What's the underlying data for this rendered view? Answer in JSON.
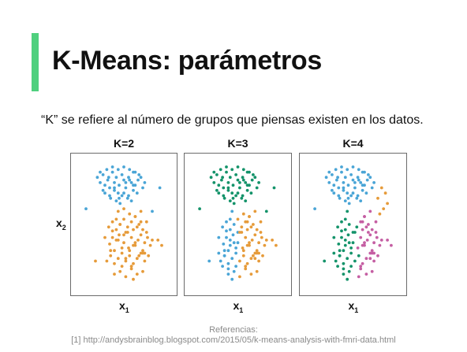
{
  "slide": {
    "title": "K-Means: parámetros",
    "subtitle": "“K” se refiere al número de grupos que piensas existen en los datos.",
    "footer_heading": "Referencias:",
    "footer_reference": "[1] http://andysbrainblog.blogspot.com/2015/05/k-means-analysis-with-fmri-data.html",
    "accent_color": "#4fd07e"
  },
  "chart_data": [
    {
      "type": "scatter",
      "title": "K=2",
      "xlabel": "x",
      "xlabel_sub": "1",
      "ylabel": "x",
      "ylabel_sub": "2",
      "xlim": [
        0,
        100
      ],
      "ylim": [
        0,
        100
      ],
      "grid": false,
      "colors": {
        "a": "#4aa5d6",
        "b": "#e69b3a"
      },
      "series": [
        {
          "cluster": "a",
          "x": [
            22,
            25,
            28,
            30,
            33,
            35,
            38,
            40,
            42,
            45,
            48,
            50,
            52,
            55,
            58,
            60,
            62,
            65,
            68,
            70,
            30,
            35,
            40,
            45,
            50,
            55,
            60,
            32,
            38,
            44,
            50,
            56,
            62,
            28,
            36,
            42,
            48,
            54,
            46,
            58,
            64,
            72,
            25,
            40,
            52,
            66,
            34,
            60,
            44,
            56
          ],
          "y": [
            86,
            82,
            88,
            80,
            84,
            78,
            90,
            82,
            86,
            80,
            88,
            84,
            78,
            86,
            82,
            90,
            80,
            84,
            86,
            78,
            74,
            72,
            76,
            70,
            74,
            72,
            76,
            92,
            94,
            92,
            94,
            92,
            90,
            76,
            70,
            68,
            72,
            70,
            66,
            68,
            74,
            82,
            90,
            78,
            82,
            88,
            86,
            80,
            74,
            84
          ]
        },
        {
          "cluster": "b",
          "x": [
            30,
            35,
            38,
            40,
            42,
            45,
            48,
            50,
            52,
            55,
            58,
            60,
            62,
            65,
            68,
            70,
            72,
            75,
            78,
            80,
            32,
            36,
            40,
            44,
            48,
            52,
            56,
            60,
            64,
            68,
            72,
            76,
            34,
            38,
            42,
            46,
            50,
            54,
            58,
            62,
            66,
            70,
            74,
            40,
            46,
            52,
            58,
            64,
            70,
            44,
            50,
            56,
            62,
            68,
            36,
            48,
            60,
            72,
            54,
            66,
            42,
            58,
            74,
            50,
            62,
            46,
            70,
            56,
            64,
            38,
            52,
            68,
            60,
            44
          ],
          "y": [
            40,
            35,
            45,
            30,
            38,
            42,
            28,
            36,
            44,
            32,
            40,
            46,
            34,
            38,
            42,
            30,
            36,
            40,
            34,
            38,
            22,
            26,
            20,
            24,
            18,
            22,
            26,
            20,
            24,
            28,
            22,
            26,
            48,
            52,
            46,
            50,
            54,
            48,
            52,
            56,
            50,
            46,
            52,
            12,
            14,
            10,
            16,
            12,
            14,
            60,
            62,
            58,
            56,
            60,
            30,
            32,
            34,
            28,
            44,
            26,
            54,
            18,
            44,
            42,
            36,
            50,
            28,
            30,
            48,
            40,
            24,
            52,
            8,
            38
          ]
        },
        {
          "cluster": "a",
          "x": [
            10,
            80,
            88
          ],
          "y": [
            62,
            60,
            78
          ]
        },
        {
          "cluster": "b",
          "x": [
            20,
            86,
            90
          ],
          "y": [
            22,
            38,
            34
          ]
        }
      ]
    },
    {
      "type": "scatter",
      "title": "K=3",
      "xlabel": "x",
      "xlabel_sub": "1",
      "ylabel": "",
      "xlim": [
        0,
        100
      ],
      "ylim": [
        0,
        100
      ],
      "grid": false,
      "colors": {
        "a": "#14936a",
        "b": "#4aa5d6",
        "c": "#e69b3a"
      },
      "series": [
        {
          "cluster": "a",
          "x": [
            22,
            25,
            28,
            30,
            33,
            35,
            38,
            40,
            42,
            45,
            48,
            50,
            52,
            55,
            58,
            60,
            62,
            65,
            68,
            70,
            30,
            35,
            40,
            45,
            50,
            55,
            60,
            32,
            38,
            44,
            50,
            56,
            62,
            28,
            36,
            42,
            48,
            54,
            46,
            58,
            64,
            72,
            25,
            40,
            52,
            66,
            34,
            60,
            44,
            56,
            10,
            80,
            88
          ],
          "y": [
            86,
            82,
            88,
            80,
            84,
            78,
            90,
            82,
            86,
            80,
            88,
            84,
            78,
            86,
            82,
            90,
            80,
            84,
            86,
            78,
            74,
            72,
            76,
            70,
            74,
            72,
            76,
            92,
            94,
            92,
            94,
            92,
            90,
            76,
            70,
            68,
            72,
            70,
            66,
            68,
            74,
            82,
            90,
            78,
            82,
            88,
            86,
            80,
            74,
            84,
            62,
            60,
            78
          ]
        },
        {
          "cluster": "b",
          "x": [
            30,
            35,
            38,
            40,
            42,
            45,
            48,
            50,
            32,
            36,
            40,
            44,
            48,
            34,
            38,
            42,
            46,
            40,
            46,
            44,
            36,
            48,
            42,
            38,
            44,
            20,
            46,
            50,
            34,
            30,
            40,
            36,
            42
          ],
          "y": [
            40,
            35,
            45,
            30,
            38,
            42,
            28,
            36,
            22,
            26,
            20,
            24,
            18,
            48,
            52,
            46,
            50,
            12,
            14,
            60,
            30,
            32,
            54,
            40,
            8,
            22,
            36,
            44,
            18,
            28,
            16,
            26,
            34
          ]
        },
        {
          "cluster": "c",
          "x": [
            52,
            55,
            58,
            60,
            62,
            65,
            68,
            70,
            72,
            75,
            78,
            80,
            52,
            56,
            60,
            64,
            68,
            72,
            76,
            50,
            54,
            58,
            62,
            66,
            70,
            74,
            52,
            58,
            64,
            70,
            56,
            62,
            68,
            60,
            72,
            54,
            66,
            58,
            74,
            62,
            70,
            56,
            64,
            86,
            90,
            68,
            60
          ],
          "y": [
            44,
            32,
            40,
            46,
            34,
            38,
            42,
            30,
            36,
            40,
            34,
            38,
            22,
            26,
            20,
            24,
            28,
            22,
            26,
            54,
            48,
            52,
            56,
            50,
            46,
            52,
            10,
            16,
            12,
            14,
            58,
            56,
            60,
            34,
            28,
            44,
            26,
            18,
            44,
            36,
            28,
            30,
            48,
            38,
            34,
            24,
            52
          ]
        }
      ]
    },
    {
      "type": "scatter",
      "title": "K=4",
      "xlabel": "x",
      "xlabel_sub": "1",
      "ylabel": "",
      "xlim": [
        0,
        100
      ],
      "ylim": [
        0,
        100
      ],
      "grid": false,
      "colors": {
        "a": "#4aa5d6",
        "b": "#e69b3a",
        "c": "#14936a",
        "d": "#c55fa3"
      },
      "series": [
        {
          "cluster": "a",
          "x": [
            22,
            25,
            28,
            30,
            33,
            35,
            38,
            40,
            42,
            45,
            48,
            50,
            52,
            55,
            58,
            60,
            62,
            65,
            68,
            70,
            30,
            35,
            40,
            45,
            50,
            55,
            60,
            32,
            38,
            44,
            50,
            56,
            62,
            28,
            36,
            42,
            48,
            54,
            46,
            58,
            64,
            72,
            25,
            40,
            52,
            66,
            34,
            60,
            44,
            56,
            10
          ],
          "y": [
            86,
            82,
            88,
            80,
            84,
            78,
            90,
            82,
            86,
            80,
            88,
            84,
            78,
            86,
            82,
            90,
            80,
            84,
            86,
            78,
            74,
            72,
            76,
            70,
            74,
            72,
            76,
            92,
            94,
            92,
            94,
            92,
            90,
            76,
            70,
            68,
            72,
            70,
            66,
            68,
            74,
            82,
            90,
            78,
            82,
            88,
            86,
            80,
            74,
            84,
            62
          ]
        },
        {
          "cluster": "b",
          "x": [
            80,
            76,
            84,
            82,
            78,
            86
          ],
          "y": [
            78,
            70,
            74,
            62,
            58,
            66
          ]
        },
        {
          "cluster": "c",
          "x": [
            30,
            35,
            38,
            40,
            42,
            45,
            48,
            50,
            32,
            36,
            40,
            44,
            48,
            34,
            38,
            42,
            46,
            40,
            46,
            44,
            36,
            48,
            42,
            38,
            44,
            20,
            46,
            50,
            34,
            30,
            40,
            36,
            42,
            52,
            52,
            54,
            56
          ],
          "y": [
            40,
            35,
            45,
            30,
            38,
            42,
            28,
            36,
            22,
            26,
            20,
            24,
            18,
            48,
            52,
            46,
            50,
            12,
            14,
            60,
            30,
            32,
            54,
            40,
            8,
            22,
            36,
            44,
            18,
            28,
            16,
            26,
            34,
            44,
            22,
            48,
            26
          ]
        },
        {
          "cluster": "d",
          "x": [
            58,
            60,
            62,
            65,
            68,
            70,
            72,
            75,
            78,
            80,
            60,
            64,
            68,
            72,
            76,
            58,
            62,
            66,
            70,
            74,
            58,
            64,
            70,
            62,
            68,
            60,
            72,
            66,
            58,
            74,
            62,
            70,
            64,
            86,
            90,
            68,
            60,
            55,
            56
          ],
          "y": [
            40,
            46,
            34,
            38,
            42,
            30,
            36,
            40,
            34,
            38,
            20,
            24,
            28,
            22,
            26,
            52,
            56,
            50,
            46,
            52,
            16,
            12,
            14,
            56,
            60,
            34,
            28,
            44,
            18,
            44,
            36,
            28,
            48,
            38,
            34,
            24,
            52,
            32,
            10
          ]
        }
      ]
    }
  ]
}
